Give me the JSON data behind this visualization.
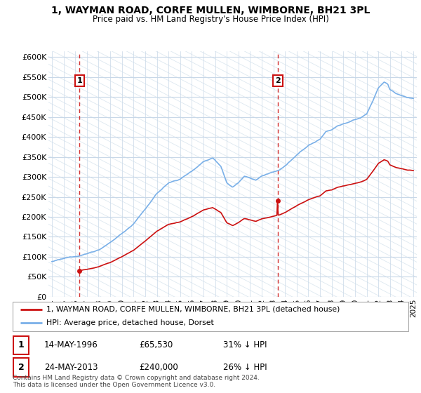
{
  "title_line1": "1, WAYMAN ROAD, CORFE MULLEN, WIMBORNE, BH21 3PL",
  "title_line2": "Price paid vs. HM Land Registry's House Price Index (HPI)",
  "sale1_year": 1996.37,
  "sale1_price": 65530,
  "sale2_year": 2013.38,
  "sale2_price": 240000,
  "ylabel_ticks": [
    "£0",
    "£50K",
    "£100K",
    "£150K",
    "£200K",
    "£250K",
    "£300K",
    "£350K",
    "£400K",
    "£450K",
    "£500K",
    "£550K",
    "£600K"
  ],
  "ytick_vals": [
    0,
    50000,
    100000,
    150000,
    200000,
    250000,
    300000,
    350000,
    400000,
    450000,
    500000,
    550000,
    600000
  ],
  "xlim": [
    1993.7,
    2025.3
  ],
  "ylim": [
    0,
    615000
  ],
  "hpi_color": "#7ab0e8",
  "price_color": "#cc1111",
  "grid_color": "#c8d8e8",
  "legend_label_price": "1, WAYMAN ROAD, CORFE MULLEN, WIMBORNE, BH21 3PL (detached house)",
  "legend_label_hpi": "HPI: Average price, detached house, Dorset",
  "note1_date": "14-MAY-1996",
  "note1_price": "£65,530",
  "note1_hpi": "31% ↓ HPI",
  "note2_date": "24-MAY-2013",
  "note2_price": "£240,000",
  "note2_hpi": "26% ↓ HPI",
  "footer": "Contains HM Land Registry data © Crown copyright and database right 2024.\nThis data is licensed under the Open Government Licence v3.0."
}
